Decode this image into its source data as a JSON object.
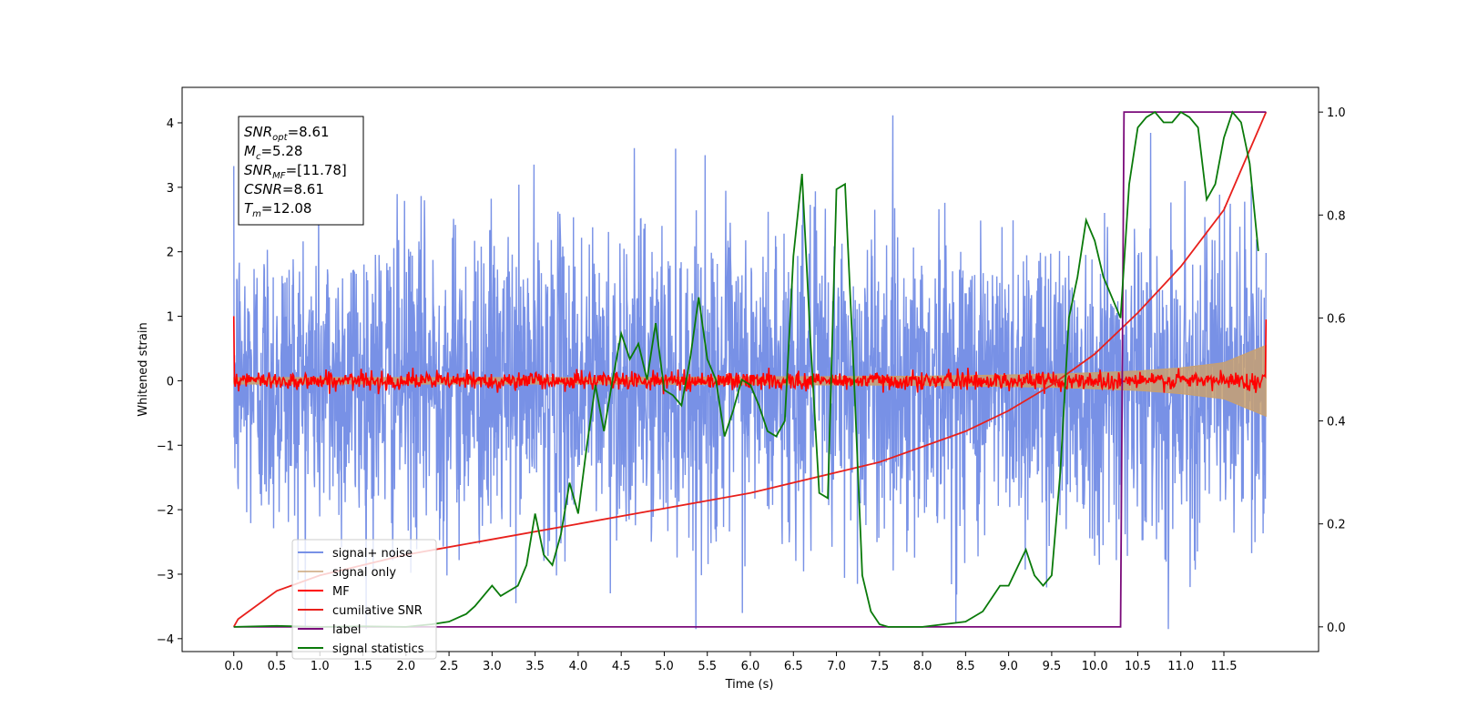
{
  "chart_data": {
    "type": "line",
    "xlabel": "Time (s)",
    "ylabel": "Whitened strain",
    "xlim": [
      -0.6,
      12.6
    ],
    "ylim": [
      -4.2,
      4.55
    ],
    "y2lim": [
      -0.048,
      1.048
    ],
    "x_ticks": [
      0.0,
      0.5,
      1.0,
      1.5,
      2.0,
      2.5,
      3.0,
      3.5,
      4.0,
      4.5,
      5.0,
      5.5,
      6.0,
      6.5,
      7.0,
      7.5,
      8.0,
      8.5,
      9.0,
      9.5,
      10.0,
      10.5,
      11.0,
      11.5
    ],
    "x_tick_labels": [
      "0.0",
      "0.5",
      "1.0",
      "1.5",
      "2.0",
      "2.5",
      "3.0",
      "3.5",
      "4.0",
      "4.5",
      "5.0",
      "5.5",
      "6.0",
      "6.5",
      "7.0",
      "7.5",
      "8.0",
      "8.5",
      "9.0",
      "9.5",
      "10.0",
      "10.5",
      "11.0",
      "11.5"
    ],
    "y_ticks": [
      4,
      3,
      2,
      1,
      0,
      -1,
      -2,
      -3,
      -4
    ],
    "y_tick_labels": [
      "4",
      "3",
      "2",
      "1",
      "0",
      "−1",
      "−2",
      "−3",
      "−4"
    ],
    "y2_ticks": [
      1.0,
      0.8,
      0.6,
      0.4,
      0.2,
      0.0
    ],
    "y2_tick_labels": [
      "1.0",
      "0.8",
      "0.6",
      "0.4",
      "0.2",
      "0.0"
    ],
    "grid": false,
    "legend_position": "lower-left",
    "annotation": {
      "lines": [
        {
          "base": "SNR",
          "sub": "opt",
          "value": "=8.61"
        },
        {
          "base": "M",
          "sub": "c",
          "value": "=5.28"
        },
        {
          "base": "SNR",
          "sub": "MF",
          "value": "=[11.78]"
        },
        {
          "base": "CSNR",
          "sub": "",
          "value": "=8.61"
        },
        {
          "base": "T",
          "sub": "m",
          "value": "=12.08"
        }
      ]
    },
    "series": [
      {
        "name": "signal+ noise",
        "axis": "left",
        "color": "#7891e6",
        "description_values": {
          "mean": 0.0,
          "std": 1.2,
          "t_start": 0.0,
          "t_end": 11.99
        }
      },
      {
        "name": "signal only",
        "axis": "left",
        "color": "#c8a070",
        "envelope": {
          "t": [
            0.0,
            2.0,
            4.0,
            6.0,
            8.0,
            9.5,
            10.5,
            11.0,
            11.5,
            11.99
          ],
          "amp": [
            0.05,
            0.05,
            0.05,
            0.06,
            0.07,
            0.1,
            0.15,
            0.2,
            0.28,
            0.55
          ]
        }
      },
      {
        "name": "MF",
        "axis": "left",
        "color": "#ff0000",
        "description_values": {
          "mean": 0.0,
          "std": 0.07,
          "spike_at_t0": 1.0,
          "spike_at_end": 0.95
        }
      },
      {
        "name": "cumilative SNR",
        "axis": "right",
        "color": "#e8201c",
        "x": [
          0.0,
          0.05,
          0.5,
          1.0,
          2.0,
          3.0,
          4.0,
          5.0,
          6.0,
          7.0,
          7.5,
          8.0,
          8.5,
          9.0,
          9.5,
          10.0,
          10.5,
          11.0,
          11.5,
          11.99
        ],
        "y": [
          0.0,
          0.015,
          0.07,
          0.1,
          0.14,
          0.17,
          0.2,
          0.23,
          0.26,
          0.3,
          0.32,
          0.35,
          0.38,
          0.42,
          0.47,
          0.53,
          0.61,
          0.7,
          0.81,
          1.0
        ]
      },
      {
        "name": "label",
        "axis": "right",
        "color": "#7a0a7a",
        "x": [
          0.0,
          10.3,
          10.34,
          11.99
        ],
        "y": [
          0.0,
          0.0,
          1.0,
          1.0
        ]
      },
      {
        "name": "signal statistics",
        "axis": "right",
        "color": "#0a7a0a",
        "x": [
          0.0,
          0.5,
          1.0,
          1.5,
          2.0,
          2.3,
          2.5,
          2.7,
          2.8,
          3.0,
          3.1,
          3.2,
          3.3,
          3.4,
          3.5,
          3.6,
          3.7,
          3.8,
          3.9,
          4.0,
          4.1,
          4.2,
          4.3,
          4.4,
          4.5,
          4.6,
          4.7,
          4.8,
          4.9,
          5.0,
          5.1,
          5.2,
          5.3,
          5.4,
          5.5,
          5.6,
          5.7,
          5.8,
          5.9,
          6.0,
          6.1,
          6.2,
          6.3,
          6.4,
          6.5,
          6.6,
          6.7,
          6.8,
          6.9,
          7.0,
          7.1,
          7.2,
          7.3,
          7.4,
          7.5,
          7.6,
          8.0,
          8.5,
          8.7,
          8.9,
          9.0,
          9.2,
          9.3,
          9.4,
          9.5,
          9.6,
          9.7,
          9.8,
          9.9,
          10.0,
          10.1,
          10.2,
          10.3,
          10.4,
          10.5,
          10.6,
          10.7,
          10.8,
          10.9,
          11.0,
          11.1,
          11.2,
          11.3,
          11.4,
          11.5,
          11.6,
          11.7,
          11.8,
          11.9
        ],
        "y": [
          0.0,
          0.002,
          0.0,
          0.001,
          0.0,
          0.005,
          0.01,
          0.025,
          0.04,
          0.08,
          0.06,
          0.07,
          0.08,
          0.12,
          0.22,
          0.14,
          0.12,
          0.18,
          0.28,
          0.22,
          0.35,
          0.47,
          0.38,
          0.48,
          0.57,
          0.52,
          0.55,
          0.48,
          0.59,
          0.46,
          0.45,
          0.43,
          0.52,
          0.64,
          0.52,
          0.48,
          0.37,
          0.42,
          0.48,
          0.47,
          0.43,
          0.38,
          0.37,
          0.4,
          0.72,
          0.88,
          0.55,
          0.26,
          0.25,
          0.85,
          0.86,
          0.5,
          0.1,
          0.03,
          0.005,
          0.0,
          0.0,
          0.01,
          0.03,
          0.08,
          0.08,
          0.15,
          0.1,
          0.08,
          0.1,
          0.3,
          0.6,
          0.68,
          0.79,
          0.75,
          0.68,
          0.64,
          0.6,
          0.86,
          0.97,
          0.99,
          1.0,
          0.98,
          0.98,
          1.0,
          0.99,
          0.97,
          0.83,
          0.86,
          0.95,
          1.0,
          0.98,
          0.9,
          0.73
        ]
      }
    ]
  }
}
